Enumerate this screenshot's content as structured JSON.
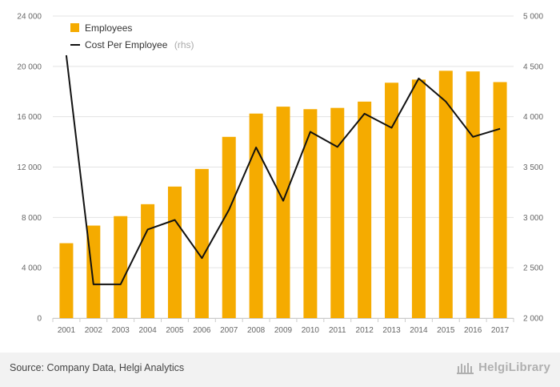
{
  "chart_data": {
    "type": "bar",
    "categories": [
      "2001",
      "2002",
      "2003",
      "2004",
      "2005",
      "2006",
      "2007",
      "2008",
      "2009",
      "2010",
      "2011",
      "2012",
      "2013",
      "2014",
      "2015",
      "2016",
      "2017"
    ],
    "series": [
      {
        "name": "Employees",
        "type": "bar",
        "axis": "left",
        "values": [
          5950,
          7350,
          8100,
          9050,
          10450,
          11850,
          14400,
          16250,
          16800,
          16600,
          16700,
          17200,
          18700,
          18950,
          19650,
          19600,
          18750
        ]
      },
      {
        "name": "Cost Per Employee",
        "name_suffix": "(rhs)",
        "type": "line",
        "axis": "right",
        "values": [
          4610,
          2335,
          2335,
          2880,
          2975,
          2595,
          3075,
          3695,
          3165,
          3850,
          3700,
          4030,
          3890,
          4380,
          4150,
          3800,
          3880
        ]
      }
    ],
    "y_left": {
      "min": 0,
      "max": 24000,
      "ticks": [
        0,
        4000,
        8000,
        12000,
        16000,
        20000,
        24000
      ],
      "tick_labels": [
        "0",
        "4 000",
        "8 000",
        "12 000",
        "16 000",
        "20 000",
        "24 000"
      ]
    },
    "y_right": {
      "min": 2000,
      "max": 5000,
      "ticks": [
        2000,
        2500,
        3000,
        3500,
        4000,
        4500,
        5000
      ],
      "tick_labels": [
        "2 000",
        "2 500",
        "3 000",
        "3 500",
        "4 000",
        "4 500",
        "5 000"
      ]
    },
    "grid": true,
    "legend_position": "top-left",
    "colors": {
      "bar": "#f5ab00",
      "line": "#111111",
      "grid": "#e3e3e3"
    }
  },
  "footer": {
    "source": "Source: Company Data, Helgi Analytics",
    "brand": "HelgiLibrary"
  }
}
